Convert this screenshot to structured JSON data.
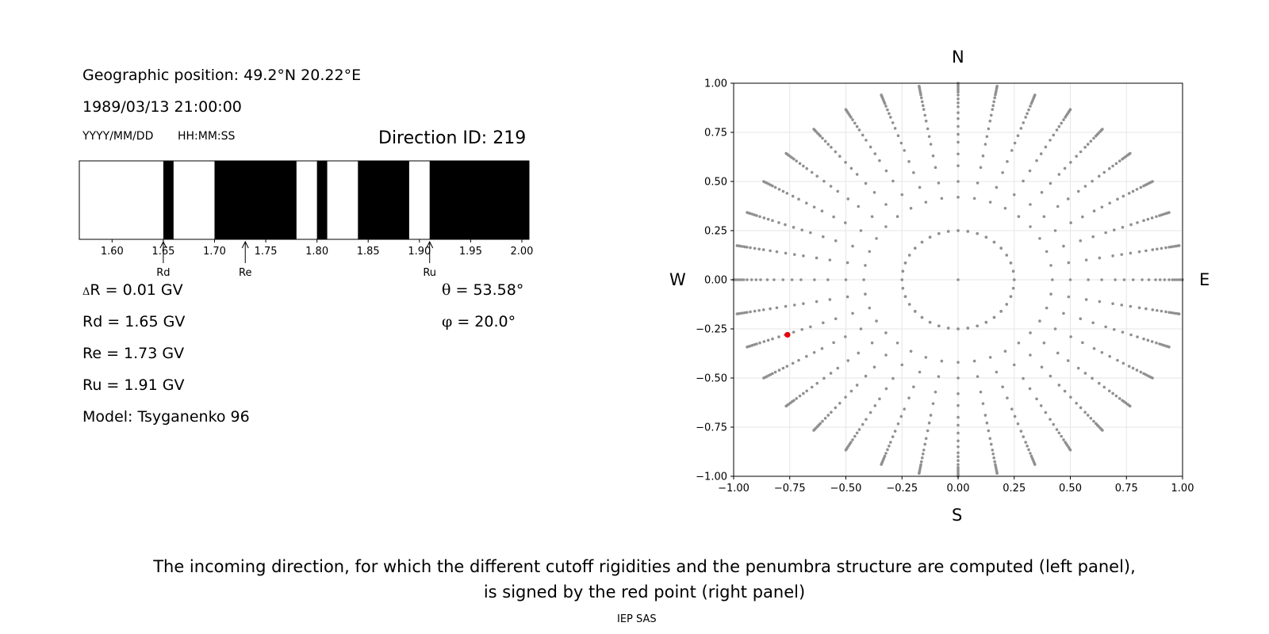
{
  "header": {
    "geo_position": "Geographic position: 49.2°N 20.22°E",
    "datetime": "1989/03/13 21:00:00",
    "date_format": "YYYY/MM/DD",
    "time_format": "HH:MM:SS",
    "direction_id": "Direction ID: 219"
  },
  "penumbra": {
    "range": [
      1.568,
      2.007
    ],
    "ticks": [
      "1.60",
      "1.65",
      "1.70",
      "1.75",
      "1.80",
      "1.85",
      "1.90",
      "1.95",
      "2.00"
    ],
    "black_bands": [
      [
        1.65,
        1.66
      ],
      [
        1.7,
        1.78
      ],
      [
        1.8,
        1.81
      ],
      [
        1.84,
        1.89
      ],
      [
        1.91,
        2.007
      ]
    ],
    "markers": [
      {
        "label": "Rd",
        "value": 1.65
      },
      {
        "label": "Re",
        "value": 1.73
      },
      {
        "label": "Ru",
        "value": 1.91
      }
    ]
  },
  "results": {
    "delta_symbol": "Δ",
    "delta_r_text": "R = 0.01 GV",
    "rd": "Rd = 1.65 GV",
    "re": "Re = 1.73 GV",
    "ru": "Ru = 1.91 GV",
    "model": "Model: Tsyganenko 96",
    "theta_symbol": "θ",
    "theta_text": " = 53.58°",
    "phi_symbol": "φ",
    "phi_text": " = 20.0°"
  },
  "compass": {
    "north": "N",
    "south": "S",
    "west": "W",
    "east": "E"
  },
  "chart_data": {
    "type": "scatter",
    "title": "",
    "xlabel": "",
    "ylabel": "",
    "xlim": [
      -1.0,
      1.0
    ],
    "ylim": [
      -1.0,
      1.0
    ],
    "grid": true,
    "x_ticks": [
      "−1.00",
      "−0.75",
      "−0.50",
      "−0.25",
      "0.00",
      "0.25",
      "0.50",
      "0.75",
      "1.00"
    ],
    "y_ticks": [
      "1.00",
      "0.75",
      "0.50",
      "0.25",
      "0.00",
      "−0.25",
      "−0.50",
      "−0.75",
      "−1.00"
    ],
    "series": [
      {
        "color": "#909090",
        "pattern": "radial spokes of directions",
        "spoke_azimuths_deg_step": 10,
        "points_per_spoke_radius_min": 0.25,
        "points_per_spoke_radius_max": 1.0,
        "radius_min_0_is_center_only": true
      },
      {
        "color": "#e8000b",
        "points": [
          {
            "x": -0.76,
            "y": -0.28
          }
        ]
      }
    ]
  },
  "footer": {
    "caption_line1": "The incoming direction, for which the different cutoff rigidities and the penumbra structure are computed (left panel),",
    "caption_line2": "is signed by the red point (right panel)",
    "credit": "IEP SAS"
  }
}
